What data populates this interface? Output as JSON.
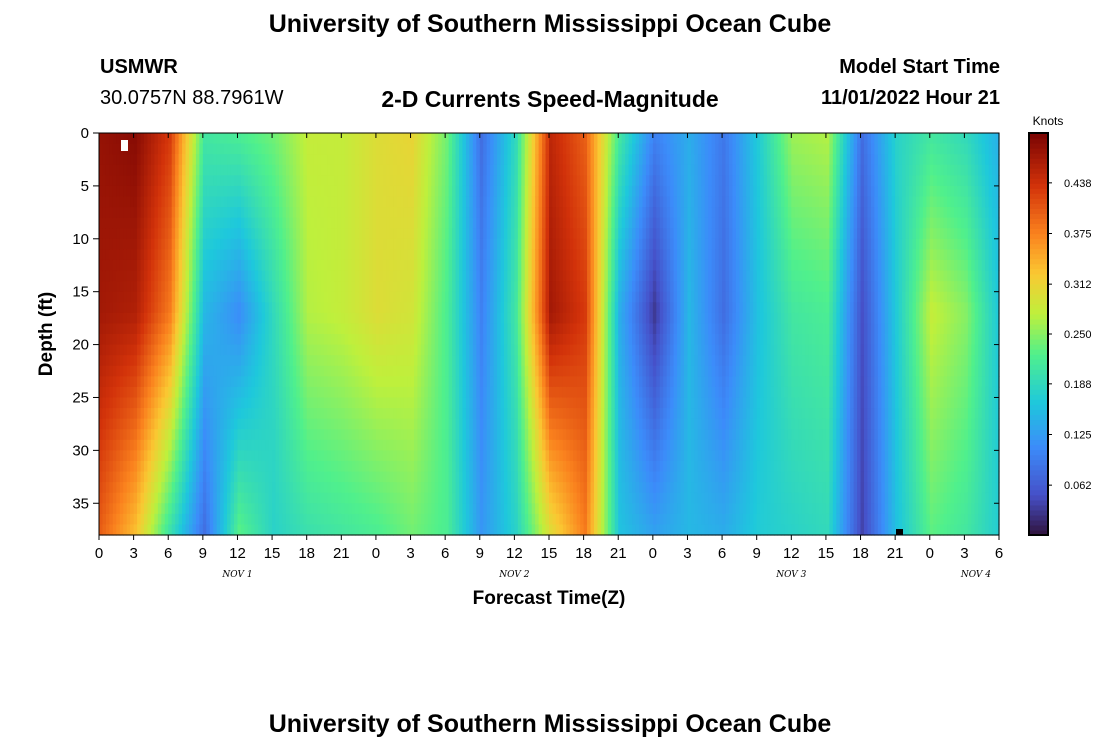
{
  "page": {
    "title_top": "University of Southern Mississippi Ocean Cube",
    "title_bottom": "University of Southern Mississippi Ocean Cube",
    "station": "USMWR",
    "coords": "30.0757N  88.7961W",
    "subtitle": "2-D Currents Speed-Magnitude",
    "model_label": "Model Start Time",
    "model_time": "11/01/2022 Hour 21"
  },
  "chart_data": {
    "type": "heatmap",
    "title": "2-D Currents Speed-Magnitude",
    "xlabel": "Forecast Time(Z)",
    "ylabel": "Depth (ft)",
    "colorbar_label": "Knots",
    "x_range_hours": [
      0,
      78
    ],
    "y_range_ft": [
      0,
      38
    ],
    "x_tick_labels": [
      "0",
      "3",
      "6",
      "9",
      "12",
      "15",
      "18",
      "21",
      "0",
      "3",
      "6",
      "9",
      "12",
      "15",
      "18",
      "21",
      "0",
      "3",
      "6",
      "9",
      "12",
      "15",
      "18",
      "21",
      "0",
      "3",
      "6"
    ],
    "y_ticks": [
      0,
      5,
      10,
      15,
      20,
      25,
      30,
      35
    ],
    "date_labels": [
      {
        "hour": 12,
        "label": "NOV 1"
      },
      {
        "hour": 36,
        "label": "NOV 2"
      },
      {
        "hour": 60,
        "label": "NOV 3"
      },
      {
        "hour": 76,
        "label": "NOV 4"
      }
    ],
    "colorbar_ticks": [
      0.062,
      0.125,
      0.188,
      0.25,
      0.312,
      0.375,
      0.438
    ],
    "colorbar_range": [
      0.0,
      0.5
    ],
    "series": [
      {
        "hour": 0,
        "surface": 0.48,
        "mid": 0.47,
        "bottom": 0.4
      },
      {
        "hour": 3,
        "surface": 0.49,
        "mid": 0.46,
        "bottom": 0.33
      },
      {
        "hour": 6,
        "surface": 0.43,
        "mid": 0.38,
        "bottom": 0.2
      },
      {
        "hour": 9,
        "surface": 0.21,
        "mid": 0.15,
        "bottom": 0.08
      },
      {
        "hour": 12,
        "surface": 0.22,
        "mid": 0.11,
        "bottom": 0.23
      },
      {
        "hour": 15,
        "surface": 0.24,
        "mid": 0.19,
        "bottom": 0.18
      },
      {
        "hour": 18,
        "surface": 0.28,
        "mid": 0.27,
        "bottom": 0.2
      },
      {
        "hour": 21,
        "surface": 0.28,
        "mid": 0.28,
        "bottom": 0.21
      },
      {
        "hour": 24,
        "surface": 0.3,
        "mid": 0.3,
        "bottom": 0.22
      },
      {
        "hour": 27,
        "surface": 0.31,
        "mid": 0.29,
        "bottom": 0.24
      },
      {
        "hour": 30,
        "surface": 0.24,
        "mid": 0.22,
        "bottom": 0.22
      },
      {
        "hour": 33,
        "surface": 0.08,
        "mid": 0.1,
        "bottom": 0.12
      },
      {
        "hour": 36,
        "surface": 0.19,
        "mid": 0.21,
        "bottom": 0.18
      },
      {
        "hour": 39,
        "surface": 0.45,
        "mid": 0.47,
        "bottom": 0.3
      },
      {
        "hour": 42,
        "surface": 0.4,
        "mid": 0.43,
        "bottom": 0.38
      },
      {
        "hour": 45,
        "surface": 0.21,
        "mid": 0.14,
        "bottom": 0.16
      },
      {
        "hour": 48,
        "surface": 0.1,
        "mid": 0.03,
        "bottom": 0.13
      },
      {
        "hour": 51,
        "surface": 0.14,
        "mid": 0.15,
        "bottom": 0.15
      },
      {
        "hour": 54,
        "surface": 0.09,
        "mid": 0.08,
        "bottom": 0.14
      },
      {
        "hour": 57,
        "surface": 0.17,
        "mid": 0.16,
        "bottom": 0.17
      },
      {
        "hour": 60,
        "surface": 0.26,
        "mid": 0.21,
        "bottom": 0.18
      },
      {
        "hour": 63,
        "surface": 0.27,
        "mid": 0.22,
        "bottom": 0.19
      },
      {
        "hour": 66,
        "surface": 0.08,
        "mid": 0.05,
        "bottom": 0.04
      },
      {
        "hour": 69,
        "surface": 0.18,
        "mid": 0.17,
        "bottom": 0.16
      },
      {
        "hour": 72,
        "surface": 0.21,
        "mid": 0.28,
        "bottom": 0.23
      },
      {
        "hour": 75,
        "surface": 0.19,
        "mid": 0.25,
        "bottom": 0.21
      },
      {
        "hour": 78,
        "surface": 0.14,
        "mid": 0.16,
        "bottom": 0.17
      }
    ]
  }
}
